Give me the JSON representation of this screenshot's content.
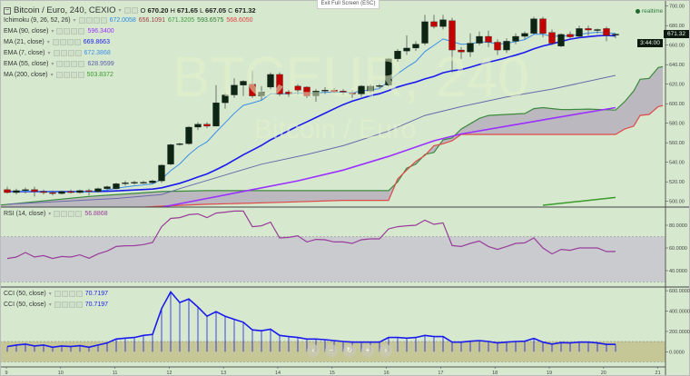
{
  "header": {
    "collapse_icon": "minus-square-icon",
    "symbol_title": "Bitcoin / Euro, 240, CEXIO",
    "o_label": "O",
    "o": "670.20",
    "h_label": "H",
    "h": "671.65",
    "l_label": "L",
    "l": "667.05",
    "c_label": "C",
    "c": "671.32"
  },
  "watermark": {
    "big": "BTCEUR, 240",
    "small": "Bitcoin / Euro"
  },
  "exit_fullscreen": "Exit Full Screen (ESC)",
  "realtime": "realtime",
  "last_price_tag": "671.32",
  "countdown_tag": "3:44:00",
  "indicators": [
    {
      "label": "Ichimoku (9, 26, 52, 26)",
      "values": [
        "672.0058",
        "656.1091",
        "671.3205",
        "593.6575",
        "568.6050"
      ],
      "colors": [
        "#2a8ae8",
        "#a04040",
        "#3d9a3d",
        "#2e7d2e",
        "#e04040"
      ]
    },
    {
      "label": "EMA (90, close)",
      "values": [
        "596.3400"
      ],
      "colors": [
        "#9b30ff"
      ]
    },
    {
      "label": "MA (21, close)",
      "values": [
        "669.8663"
      ],
      "colors": [
        "#1a1aee"
      ]
    },
    {
      "label": "EMA (7, close)",
      "values": [
        "672.3868"
      ],
      "colors": [
        "#3a8ee8"
      ]
    },
    {
      "label": "EMA (55, close)",
      "values": [
        "628.9599"
      ],
      "colors": [
        "#5a5aa8"
      ]
    },
    {
      "label": "MA (200, close)",
      "values": [
        "503.8372"
      ],
      "colors": [
        "#3a9a2a"
      ]
    }
  ],
  "rsi_legend": {
    "label": "RSI (14, close)",
    "value": "56.8868",
    "color": "#9a3c9a"
  },
  "cci_legends": [
    {
      "label": "CCI (50, close)",
      "value": "70.7197",
      "color": "#1a1aee"
    },
    {
      "label": "CCI (50, close)",
      "value": "70.7197",
      "color": "#1a1aee"
    }
  ],
  "nav_buttons": [
    {
      "name": "scroll-left",
      "icon": "‹"
    },
    {
      "name": "zoom-out",
      "icon": "−"
    },
    {
      "name": "reset",
      "icon": "↻"
    },
    {
      "name": "zoom-in",
      "icon": "+"
    },
    {
      "name": "scroll-right",
      "icon": "›"
    }
  ],
  "colors": {
    "bull": "#0d2614",
    "bear": "#c40000",
    "wick": "#555555",
    "ema7": "#3a8ee8",
    "ma21": "#1a1aee",
    "ema55": "#6a6aaa",
    "ema90": "#9b30ff",
    "ma200": "#3a9a2a",
    "span_a": "#3d8a3d",
    "span_b": "#e04848",
    "cloud": "#b8b4bc",
    "rsi": "#9a3c9a",
    "rsi_band": "#c9cbcf",
    "cci": "#1a1aee",
    "cci_band": "#c6c797"
  },
  "chart_data": [
    {
      "type": "candlestick",
      "title": "Bitcoin / Euro, 240, CEXIO",
      "ylim": [
        495,
        705
      ],
      "y_ticks": [
        "700.00",
        "680.00",
        "660.00",
        "640.00",
        "620.00",
        "600.00",
        "580.00",
        "560.00",
        "540.00",
        "520.00",
        "500.00"
      ],
      "ohlc": [
        [
          512,
          515,
          508,
          509
        ],
        [
          509,
          513,
          507,
          511
        ],
        [
          511,
          514,
          508,
          512
        ],
        [
          512,
          515,
          505,
          510
        ],
        [
          510,
          512,
          507,
          509
        ],
        [
          509,
          511,
          506,
          508
        ],
        [
          508,
          511,
          507,
          510
        ],
        [
          510,
          512,
          508,
          509
        ],
        [
          509,
          512,
          508,
          511
        ],
        [
          511,
          513,
          506,
          510
        ],
        [
          510,
          514,
          509,
          513
        ],
        [
          513,
          516,
          511,
          515
        ],
        [
          513,
          519,
          512,
          518
        ],
        [
          518,
          521,
          516,
          519
        ],
        [
          519,
          521,
          517,
          519.5
        ],
        [
          519,
          521,
          518,
          519.5
        ],
        [
          519,
          522,
          518,
          521
        ],
        [
          521,
          538,
          519,
          537
        ],
        [
          538,
          559,
          537,
          558
        ],
        [
          558,
          560,
          557,
          559
        ],
        [
          559,
          577,
          558,
          576
        ],
        [
          576,
          581,
          573,
          579
        ],
        [
          579,
          581,
          575,
          577
        ],
        [
          577,
          619,
          577,
          601
        ],
        [
          601,
          611,
          595,
          609
        ],
        [
          609,
          626,
          606,
          619
        ],
        [
          619,
          624,
          608,
          623
        ],
        [
          620,
          634,
          606,
          608
        ],
        [
          608,
          618,
          604,
          612
        ],
        [
          617,
          632,
          615,
          630
        ],
        [
          630,
          632,
          608,
          610
        ],
        [
          612,
          614,
          607,
          610
        ],
        [
          618,
          620,
          609,
          614
        ],
        [
          617,
          618,
          606,
          608
        ],
        [
          608,
          615,
          602,
          613
        ],
        [
          613,
          617,
          610,
          614
        ],
        [
          614,
          616,
          611,
          612
        ],
        [
          613,
          615,
          609,
          612
        ],
        [
          611,
          614,
          606,
          610
        ],
        [
          610,
          619,
          607,
          618
        ],
        [
          613,
          620,
          611,
          618
        ],
        [
          618,
          620,
          616,
          618.5
        ],
        [
          619,
          647,
          618,
          646
        ],
        [
          646,
          656,
          643,
          654
        ],
        [
          654,
          670,
          650,
          657
        ],
        [
          657,
          664,
          654,
          661
        ],
        [
          662,
          691,
          660,
          684
        ],
        [
          684,
          691,
          677,
          679
        ],
        [
          679,
          691,
          676,
          686
        ],
        [
          685,
          688,
          632,
          655
        ],
        [
          655,
          658,
          646,
          653
        ],
        [
          653,
          672,
          648,
          662
        ],
        [
          662,
          674,
          660,
          669
        ],
        [
          669,
          675,
          658,
          663
        ],
        [
          663,
          666,
          650,
          655
        ],
        [
          655,
          667,
          652,
          664
        ],
        [
          664,
          672,
          661,
          669
        ],
        [
          669,
          674,
          666,
          672
        ],
        [
          672,
          689,
          671,
          687
        ],
        [
          687,
          689,
          668,
          672
        ],
        [
          673,
          676,
          660,
          662
        ],
        [
          659,
          672,
          658,
          671
        ],
        [
          671,
          674,
          667,
          668.5
        ],
        [
          669,
          680,
          668,
          677
        ],
        [
          677,
          680,
          670,
          675.5
        ],
        [
          675,
          677,
          672,
          676
        ],
        [
          677,
          679,
          664,
          670
        ],
        [
          670.2,
          671.65,
          667.05,
          671.32
        ]
      ],
      "ema55": [
        [
          0,
          497
        ],
        [
          12,
          503
        ],
        [
          17,
          507
        ],
        [
          19,
          513
        ],
        [
          24,
          527
        ],
        [
          28,
          538
        ],
        [
          33,
          548
        ],
        [
          37,
          557
        ],
        [
          42,
          572
        ],
        [
          46,
          588
        ],
        [
          50,
          597
        ],
        [
          55,
          607
        ],
        [
          60,
          615
        ],
        [
          67,
          629
        ]
      ],
      "ema90": [
        [
          17,
          494
        ],
        [
          22,
          503
        ],
        [
          27,
          512
        ],
        [
          32,
          521
        ],
        [
          37,
          532
        ],
        [
          42,
          546
        ],
        [
          47,
          562
        ],
        [
          50,
          569
        ],
        [
          55,
          577
        ],
        [
          60,
          585
        ],
        [
          67,
          596
        ]
      ],
      "ma200": [
        [
          59,
          496
        ],
        [
          63,
          500
        ],
        [
          67,
          504
        ]
      ],
      "span_a": [
        [
          -1,
          496
        ],
        [
          9,
          505
        ],
        [
          17,
          510
        ],
        [
          22,
          511
        ],
        [
          42,
          511
        ],
        [
          43,
          520
        ],
        [
          44,
          534
        ],
        [
          45,
          538
        ],
        [
          46,
          548
        ],
        [
          47,
          550
        ],
        [
          48,
          563
        ],
        [
          49,
          565
        ],
        [
          50,
          574
        ],
        [
          52,
          585
        ],
        [
          53,
          588
        ],
        [
          55,
          589
        ],
        [
          57,
          590
        ],
        [
          58,
          595
        ],
        [
          59,
          596
        ],
        [
          61,
          594
        ],
        [
          62,
          594
        ],
        [
          64,
          594.5
        ],
        [
          67,
          593.5
        ],
        [
          68,
          602
        ],
        [
          69,
          613
        ],
        [
          69.7,
          625
        ],
        [
          70.7,
          626
        ],
        [
          71.7,
          637
        ],
        [
          72.2,
          638
        ]
      ],
      "span_b": [
        [
          -1,
          485
        ],
        [
          16.7,
          495
        ],
        [
          22,
          497
        ],
        [
          30,
          499
        ],
        [
          37,
          501
        ],
        [
          42,
          501
        ],
        [
          43,
          523
        ],
        [
          44,
          532
        ],
        [
          45,
          541
        ],
        [
          46,
          547
        ],
        [
          47,
          557
        ],
        [
          48,
          559
        ],
        [
          49,
          562
        ],
        [
          50,
          568.6
        ],
        [
          67,
          568.6
        ],
        [
          68,
          574
        ],
        [
          69,
          577
        ],
        [
          69.7,
          588
        ],
        [
          70.7,
          589
        ],
        [
          71.7,
          597
        ],
        [
          72.2,
          598
        ]
      ]
    },
    {
      "type": "line",
      "title": "RSI (14, close)",
      "ylim": [
        25,
        95
      ],
      "bands": [
        30,
        70
      ],
      "y_ticks": [
        "80.0000",
        "60.0000",
        "40.0000"
      ],
      "values": [
        50.7,
        52,
        56,
        52,
        53.3,
        50.7,
        52.5,
        52,
        53.9,
        51,
        54.7,
        57.3,
        61.3,
        61.9,
        62,
        63,
        64.8,
        78.7,
        86,
        86.7,
        89.3,
        90,
        86.7,
        90.7,
        91.5,
        92.5,
        92.5,
        78.7,
        79.5,
        82.7,
        68.8,
        69.3,
        70.7,
        65.3,
        67.5,
        67.2,
        65.3,
        65.3,
        64,
        67.2,
        68,
        68,
        76.8,
        78.7,
        79.5,
        80,
        84.5,
        80.8,
        82.1,
        62.1,
        61.3,
        64,
        66.1,
        61.3,
        58.7,
        61.3,
        64,
        64.5,
        68.8,
        60,
        54.7,
        58.7,
        57.9,
        60,
        60,
        60,
        56.8,
        56.9
      ]
    },
    {
      "type": "bar+line",
      "title": "CCI (50, close)",
      "ylim": [
        -150,
        620
      ],
      "bands": [
        -100,
        100
      ],
      "y_ticks": [
        "600.0000",
        "400.0000",
        "200.0000",
        "0.0000"
      ],
      "values": [
        51,
        66,
        75,
        57,
        66,
        45,
        57,
        51,
        60,
        45,
        66,
        87,
        125,
        134,
        140,
        161,
        170,
        424,
        588,
        484,
        519,
        439,
        349,
        394,
        349,
        319,
        290,
        215,
        206,
        221,
        161,
        149,
        140,
        125,
        125,
        119,
        110,
        101,
        95,
        95,
        95,
        95,
        140,
        140,
        134,
        140,
        161,
        149,
        149,
        95,
        95,
        104,
        110,
        101,
        87,
        95,
        101,
        104,
        131,
        95,
        75,
        90,
        87,
        95,
        95,
        87,
        72,
        72
      ]
    },
    {
      "type": "axis",
      "x_ticks": [
        "9",
        "10",
        "11",
        "12",
        "13",
        "14",
        "15",
        "16",
        "17",
        "18",
        "19",
        "20",
        "21"
      ]
    }
  ]
}
